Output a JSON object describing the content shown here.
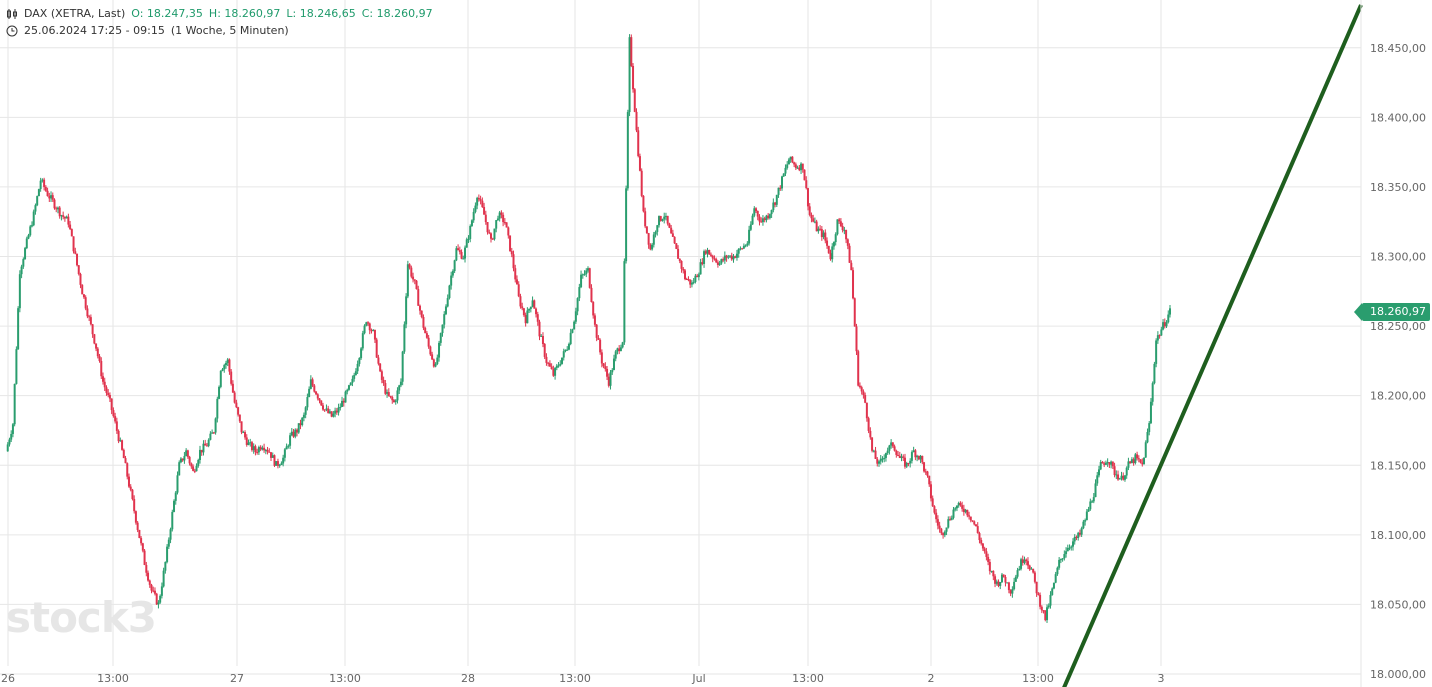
{
  "header": {
    "instrument": "DAX (XETRA, Last)",
    "open": "O: 18.247,35",
    "high": "H: 18.260,97",
    "low": "L: 18.246,65",
    "close": "C: 18.260,97",
    "period": "25.06.2024 17:25 - 09:15",
    "range": "(1 Woche, 5 Minuten)"
  },
  "watermark": "stock3",
  "last_price": "18.260,97",
  "colors": {
    "up": "#2a9d6e",
    "down": "#e0334d",
    "trendline": "#1e5e1e",
    "grid": "#e6e6e6"
  },
  "chart_data": {
    "type": "candlestick",
    "ylim": [
      18000,
      18480
    ],
    "yticks": [
      18000,
      18050,
      18100,
      18150,
      18200,
      18250,
      18300,
      18350,
      18400,
      18450
    ],
    "ytick_labels": [
      "18.000,00",
      "18.050,00",
      "18.100,00",
      "18.150,00",
      "18.200,00",
      "18.250,00",
      "18.300,00",
      "18.350,00",
      "18.400,00",
      "18.450,00"
    ],
    "x_labels": [
      "26",
      "13:00",
      "27",
      "13:00",
      "28",
      "13:00",
      "Jul",
      "13:00",
      "2",
      "13:00",
      "3"
    ],
    "path": [
      [
        0,
        18160
      ],
      [
        1,
        18180
      ],
      [
        2,
        18290
      ],
      [
        4,
        18330
      ],
      [
        5,
        18355
      ],
      [
        6,
        18345
      ],
      [
        8,
        18330
      ],
      [
        9,
        18325
      ],
      [
        10,
        18300
      ],
      [
        11,
        18275
      ],
      [
        12,
        18255
      ],
      [
        13,
        18235
      ],
      [
        14,
        18210
      ],
      [
        15,
        18195
      ],
      [
        16,
        18175
      ],
      [
        17,
        18155
      ],
      [
        18,
        18130
      ],
      [
        19,
        18105
      ],
      [
        20,
        18080
      ],
      [
        21,
        18060
      ],
      [
        22,
        18050
      ],
      [
        23,
        18080
      ],
      [
        24,
        18115
      ],
      [
        25,
        18150
      ],
      [
        26,
        18160
      ],
      [
        27,
        18145
      ],
      [
        28,
        18160
      ],
      [
        29,
        18165
      ],
      [
        30,
        18175
      ],
      [
        31,
        18220
      ],
      [
        32,
        18225
      ],
      [
        33,
        18195
      ],
      [
        34,
        18175
      ],
      [
        35,
        18165
      ],
      [
        36,
        18160
      ],
      [
        37,
        18165
      ],
      [
        38,
        18160
      ],
      [
        39,
        18150
      ],
      [
        40,
        18155
      ],
      [
        41,
        18170
      ],
      [
        42,
        18175
      ],
      [
        43,
        18185
      ],
      [
        44,
        18210
      ],
      [
        45,
        18200
      ],
      [
        46,
        18190
      ],
      [
        47,
        18185
      ],
      [
        48,
        18190
      ],
      [
        49,
        18200
      ],
      [
        50,
        18210
      ],
      [
        51,
        18230
      ],
      [
        52,
        18255
      ],
      [
        53,
        18245
      ],
      [
        54,
        18215
      ],
      [
        55,
        18200
      ],
      [
        56,
        18195
      ],
      [
        57,
        18210
      ],
      [
        58,
        18295
      ],
      [
        59,
        18280
      ],
      [
        60,
        18255
      ],
      [
        61,
        18235
      ],
      [
        62,
        18220
      ],
      [
        63,
        18250
      ],
      [
        64,
        18280
      ],
      [
        65,
        18305
      ],
      [
        66,
        18300
      ],
      [
        67,
        18320
      ],
      [
        68,
        18345
      ],
      [
        69,
        18330
      ],
      [
        70,
        18310
      ],
      [
        71,
        18330
      ],
      [
        72,
        18325
      ],
      [
        73,
        18300
      ],
      [
        74,
        18270
      ],
      [
        75,
        18255
      ],
      [
        76,
        18270
      ],
      [
        77,
        18245
      ],
      [
        78,
        18225
      ],
      [
        79,
        18215
      ],
      [
        80,
        18225
      ],
      [
        81,
        18235
      ],
      [
        82,
        18255
      ],
      [
        83,
        18285
      ],
      [
        84,
        18290
      ],
      [
        85,
        18250
      ],
      [
        86,
        18225
      ],
      [
        87,
        18210
      ],
      [
        88,
        18230
      ],
      [
        89,
        18240
      ],
      [
        90,
        18455
      ],
      [
        91,
        18390
      ],
      [
        92,
        18330
      ],
      [
        93,
        18305
      ],
      [
        94,
        18325
      ],
      [
        95,
        18330
      ],
      [
        96,
        18315
      ],
      [
        97,
        18300
      ],
      [
        98,
        18285
      ],
      [
        99,
        18280
      ],
      [
        100,
        18290
      ],
      [
        101,
        18305
      ],
      [
        102,
        18300
      ],
      [
        103,
        18295
      ],
      [
        104,
        18300
      ],
      [
        105,
        18300
      ],
      [
        106,
        18305
      ],
      [
        107,
        18310
      ],
      [
        108,
        18335
      ],
      [
        109,
        18325
      ],
      [
        110,
        18330
      ],
      [
        111,
        18340
      ],
      [
        112,
        18355
      ],
      [
        113,
        18370
      ],
      [
        114,
        18365
      ],
      [
        115,
        18365
      ],
      [
        116,
        18330
      ],
      [
        117,
        18320
      ],
      [
        118,
        18315
      ],
      [
        119,
        18300
      ],
      [
        120,
        18325
      ],
      [
        121,
        18320
      ],
      [
        122,
        18290
      ],
      [
        123,
        18210
      ],
      [
        124,
        18195
      ],
      [
        125,
        18160
      ],
      [
        126,
        18150
      ],
      [
        127,
        18160
      ],
      [
        128,
        18165
      ],
      [
        129,
        18155
      ],
      [
        130,
        18150
      ],
      [
        131,
        18160
      ],
      [
        132,
        18155
      ],
      [
        133,
        18140
      ],
      [
        134,
        18115
      ],
      [
        135,
        18100
      ],
      [
        136,
        18110
      ],
      [
        137,
        18120
      ],
      [
        138,
        18120
      ],
      [
        139,
        18115
      ],
      [
        140,
        18105
      ],
      [
        141,
        18090
      ],
      [
        142,
        18075
      ],
      [
        143,
        18065
      ],
      [
        144,
        18070
      ],
      [
        145,
        18060
      ],
      [
        146,
        18075
      ],
      [
        147,
        18085
      ],
      [
        148,
        18075
      ],
      [
        149,
        18055
      ],
      [
        150,
        18040
      ],
      [
        151,
        18060
      ],
      [
        152,
        18080
      ],
      [
        153,
        18090
      ],
      [
        154,
        18095
      ],
      [
        155,
        18100
      ],
      [
        156,
        18115
      ],
      [
        157,
        18130
      ],
      [
        158,
        18150
      ],
      [
        159,
        18155
      ],
      [
        160,
        18145
      ],
      [
        161,
        18140
      ],
      [
        162,
        18150
      ],
      [
        163,
        18155
      ],
      [
        164,
        18150
      ],
      [
        165,
        18180
      ],
      [
        166,
        18240
      ],
      [
        167,
        18250
      ],
      [
        168,
        18260.97
      ]
    ]
  }
}
